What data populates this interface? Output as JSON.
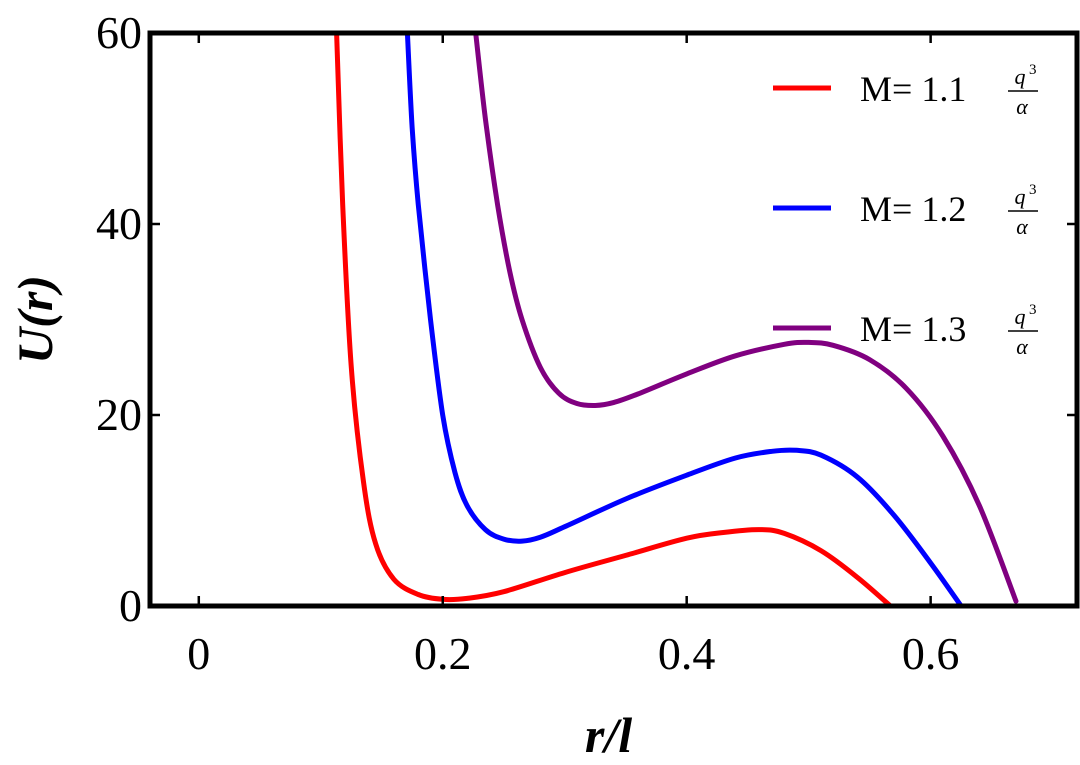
{
  "chart_data": {
    "type": "line",
    "title": "",
    "xlabel": "r/l",
    "ylabel": "U(r)",
    "xlim": [
      -0.04,
      0.72
    ],
    "ylim": [
      0,
      60
    ],
    "xticks": [
      0,
      0.2,
      0.4,
      0.6
    ],
    "xtick_labels": [
      "0",
      "0.2",
      "0.4",
      "0.6"
    ],
    "yticks": [
      0,
      20,
      40,
      60
    ],
    "ytick_labels": [
      "0",
      "20",
      "40",
      "60"
    ],
    "grid": false,
    "legend_position": "top-right",
    "series": [
      {
        "name": "M= 1.1 q^3/α",
        "legend_prefix": "M= 1.1",
        "color": "#ff0000",
        "x": [
          0.113,
          0.118,
          0.125,
          0.135,
          0.145,
          0.16,
          0.18,
          0.2,
          0.22,
          0.25,
          0.3,
          0.35,
          0.4,
          0.43,
          0.46,
          0.48,
          0.51,
          0.54,
          0.567
        ],
        "y": [
          60,
          42,
          25,
          13,
          6.5,
          2.8,
          1.2,
          0.7,
          0.8,
          1.5,
          3.5,
          5.3,
          7.1,
          7.7,
          8.0,
          7.6,
          5.8,
          3.0,
          0.0
        ]
      },
      {
        "name": "M= 1.2 q^3/α",
        "legend_prefix": "M= 1.2",
        "color": "#0000ff",
        "x": [
          0.171,
          0.175,
          0.18,
          0.19,
          0.2,
          0.21,
          0.22,
          0.235,
          0.25,
          0.265,
          0.28,
          0.3,
          0.35,
          0.4,
          0.44,
          0.47,
          0.49,
          0.51,
          0.54,
          0.57,
          0.6,
          0.625
        ],
        "y": [
          60,
          50,
          42,
          30,
          20,
          14,
          10.5,
          8,
          7,
          6.8,
          7.2,
          8.3,
          11.2,
          13.7,
          15.5,
          16.2,
          16.3,
          15.8,
          13.5,
          9.5,
          4.5,
          0.0
        ]
      },
      {
        "name": "M= 1.3 q^3/α",
        "legend_prefix": "M= 1.3",
        "color": "#800080",
        "x": [
          0.227,
          0.235,
          0.245,
          0.255,
          0.265,
          0.28,
          0.295,
          0.31,
          0.325,
          0.34,
          0.36,
          0.4,
          0.44,
          0.48,
          0.5,
          0.52,
          0.55,
          0.58,
          0.61,
          0.64,
          0.67
        ],
        "y": [
          60,
          51,
          42,
          35,
          30,
          25,
          22.3,
          21.2,
          21.0,
          21.3,
          22.2,
          24.3,
          26.2,
          27.4,
          27.6,
          27.3,
          25.8,
          22.8,
          17.8,
          10.5,
          0.5
        ]
      }
    ]
  }
}
